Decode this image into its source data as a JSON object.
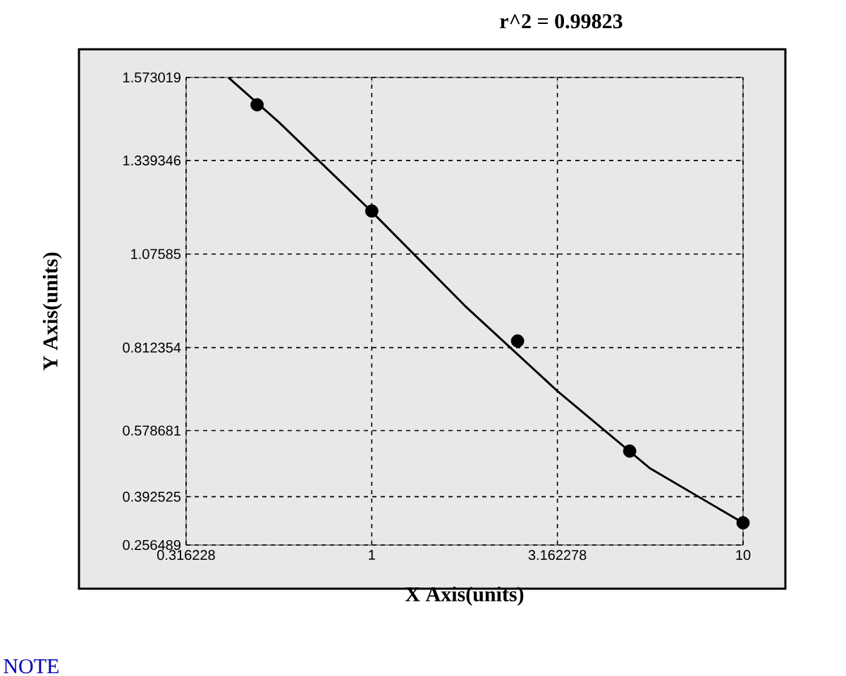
{
  "chart_data": {
    "type": "scatter",
    "title": "r^2 = 0.99823",
    "xlabel": "X Axis(units)",
    "ylabel": "Y Axis(units)",
    "annotations": [
      "NOTE"
    ],
    "log": "x",
    "grid": true,
    "xlim": [
      0.316228,
      10
    ],
    "ylim": [
      0.256489,
      1.573019
    ],
    "xticks": [
      0.316228,
      1,
      3.162278,
      10
    ],
    "yticks": [
      0.256489,
      0.392525,
      0.578681,
      0.812354,
      1.07585,
      1.339346,
      1.573019
    ],
    "series": [
      {
        "color": "#000000",
        "marker": "circle",
        "x": [
          0.491,
          1,
          2.47,
          4.95,
          10
        ],
        "values": [
          1.496,
          1.197,
          0.831,
          0.521,
          0.319
        ]
      },
      {
        "type": "line",
        "color": "#000000",
        "marker": "none",
        "x": [
          0.411,
          0.5623,
          1,
          1.778,
          3.162,
          5.623,
          10
        ],
        "values": [
          1.573,
          1.447,
          1.195,
          0.931,
          0.69,
          0.472,
          0.319
        ]
      }
    ]
  }
}
